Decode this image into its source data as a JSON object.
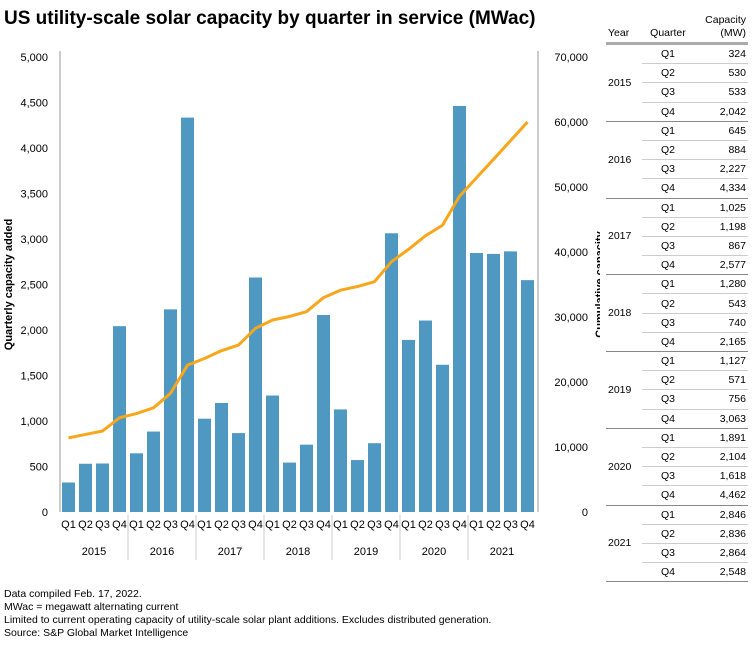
{
  "title": "US utility-scale solar capacity by quarter in service (MWac)",
  "notes": [
    "Data compiled Feb. 17, 2022.",
    "MWac = megawatt alternating current",
    "Limited to current operating capacity of utility-scale solar plant additions. Excludes distributed generation.",
    "Source: S&P Global Market Intelligence"
  ],
  "table": {
    "headers": [
      "Year",
      "Quarter",
      "Capacity (MW)"
    ],
    "rows": [
      {
        "year": "2015",
        "q": [
          "Q1",
          "Q2",
          "Q3",
          "Q4"
        ],
        "v": [
          "324",
          "530",
          "533",
          "2,042"
        ]
      },
      {
        "year": "2016",
        "q": [
          "Q1",
          "Q2",
          "Q3",
          "Q4"
        ],
        "v": [
          "645",
          "884",
          "2,227",
          "4,334"
        ]
      },
      {
        "year": "2017",
        "q": [
          "Q1",
          "Q2",
          "Q3",
          "Q4"
        ],
        "v": [
          "1,025",
          "1,198",
          "867",
          "2,577"
        ]
      },
      {
        "year": "2018",
        "q": [
          "Q1",
          "Q2",
          "Q3",
          "Q4"
        ],
        "v": [
          "1,280",
          "543",
          "740",
          "2,165"
        ]
      },
      {
        "year": "2019",
        "q": [
          "Q1",
          "Q2",
          "Q3",
          "Q4"
        ],
        "v": [
          "1,127",
          "571",
          "756",
          "3,063"
        ]
      },
      {
        "year": "2020",
        "q": [
          "Q1",
          "Q2",
          "Q3",
          "Q4"
        ],
        "v": [
          "1,891",
          "2,104",
          "1,618",
          "4,462"
        ]
      },
      {
        "year": "2021",
        "q": [
          "Q1",
          "Q2",
          "Q3",
          "Q4"
        ],
        "v": [
          "2,846",
          "2,836",
          "2,864",
          "2,548"
        ]
      }
    ]
  },
  "chart_data": {
    "type": "bar+line",
    "years": [
      "2015",
      "2016",
      "2017",
      "2018",
      "2019",
      "2020",
      "2021"
    ],
    "quarters": [
      "Q1",
      "Q2",
      "Q3",
      "Q4"
    ],
    "ylabel": "Quarterly capacity added",
    "y2label": "Cumulative capacity",
    "ylim": [
      0,
      5000
    ],
    "yticks": [
      0,
      500,
      1000,
      1500,
      2000,
      2500,
      3000,
      3500,
      4000,
      4500,
      5000
    ],
    "y2lim": [
      0,
      70000
    ],
    "y2ticks": [
      0,
      10000,
      20000,
      30000,
      40000,
      50000,
      60000,
      70000
    ],
    "colors": {
      "bars": "#4f98c1",
      "line": "#f8a61c"
    },
    "series": [
      {
        "type": "bar",
        "values": [
          324,
          530,
          533,
          2042,
          645,
          884,
          2227,
          4334,
          1025,
          1198,
          867,
          2577,
          1280,
          543,
          740,
          2165,
          1127,
          571,
          756,
          3063,
          1891,
          2104,
          1618,
          4462,
          2846,
          2836,
          2864,
          2548
        ]
      },
      {
        "type": "line",
        "axis": "right",
        "values": [
          11400,
          11930,
          12460,
          14500,
          15150,
          16030,
          18260,
          22590,
          23620,
          24820,
          25690,
          28260,
          29540,
          30080,
          30820,
          32990,
          34120,
          34690,
          35440,
          38510,
          40400,
          42500,
          44120,
          48580,
          51430,
          54260,
          57130,
          60000
        ]
      }
    ]
  }
}
